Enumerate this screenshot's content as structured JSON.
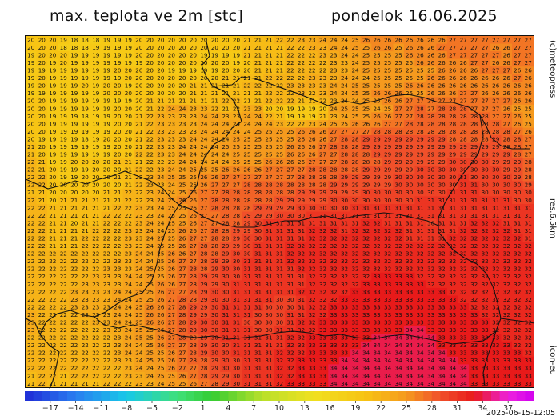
{
  "header": {
    "title": "max. teplota ve 2m [stc]",
    "date": "pondelok 16.06.2025"
  },
  "side_labels": {
    "copyright": "(c)meteopress",
    "resolution": "res.6.5km",
    "model": "icon-eu"
  },
  "footer": {
    "timestamp": "2025-06-15-12:05"
  },
  "colorbar": {
    "labels": [
      "-17",
      "-14",
      "-11",
      "-8",
      "-5",
      "-2",
      "1",
      "4",
      "7",
      "10",
      "13",
      "16",
      "19",
      "22",
      "25",
      "28",
      "31",
      "34",
      "37"
    ],
    "stops": [
      {
        "t": -20,
        "color": "#1f2bd6"
      },
      {
        "t": -14,
        "color": "#2a7ef0"
      },
      {
        "t": -8,
        "color": "#17c8e8"
      },
      {
        "t": -2,
        "color": "#3fe07a"
      },
      {
        "t": 2,
        "color": "#33cc33"
      },
      {
        "t": 8,
        "color": "#b8e02a"
      },
      {
        "t": 14,
        "color": "#f0e020"
      },
      {
        "t": 20,
        "color": "#f7c414"
      },
      {
        "t": 25,
        "color": "#f59a1e"
      },
      {
        "t": 29,
        "color": "#f0502a"
      },
      {
        "t": 33,
        "color": "#e81a1a"
      },
      {
        "t": 37,
        "color": "#ee22dd"
      },
      {
        "t": 40,
        "color": "#d000f0"
      }
    ]
  },
  "grid": {
    "cols": 47,
    "rows_data": [
      "20 20 20 19 18 18 18 19 19 19 20 20 20 20 20 20 20 20 20 20 21 21 21 22 22 23 23 24 24 24 25 26 26 26 26 26 26 26 26 27 27 27 27 27 27 27 27",
      "20 20 20 18 18 18 19 19 19 19 20 20 20 20 20 20 20 20 20 20 21 21 21 21 22 22 23 23 24 24 25 25 26 26 25 26 26 26 27 27 27 27 27 26 26 27 27",
      "19 20 20 20 19 19 19 19 19 19 20 20 20 20 20 20 19 19 19 19 21 21 21 21 22 22 22 23 23 24 24 25 25 25 25 26 26 26 26 27 27 27 27 27 26 27 27",
      "19 20 19 20 19 19 19 19 19 19 19 20 20 20 20 20 20 20 20 19 20 21 21 21 22 22 22 22 23 23 24 25 25 25 25 25 26 26 26 26 26 27 27 26 26 27 27",
      "19 19 19 19 19 19 19 19 20 20 20 20 20 19 19 19 19 19 20 20 20 21 21 21 22 22 22 22 23 23 24 25 25 25 25 25 25 25 26 26 26 26 27 27 27 26 26",
      "19 20 19 19 19 19 19 19 19 20 20 20 20 20 20 20 20 20 21 21 21 21 22 22 22 22 23 23 23 24 24 24 25 25 25 25 25 26 26 26 26 26 26 26 26 27 26",
      "19 20 19 19 19 20 19 20 20 19 20 20 20 20 20 21 21 21 21 21 22 22 22 22 23 23 23 23 24 24 25 25 25 25 25 26 26 26 26 26 26 26 26 26 26 26 26",
      "19 19 19 19 19 19 19 20 20 20 20 20 20 20 20 21 21 21 21 21 21 21 22 22 22 23 22 23 24 24 25 25 26 26 26 25 25 26 26 26 27 27 26 26 26 26 26",
      "20 20 19 19 19 19 19 19 19 19 20 21 21 21 21 21 21 21 22 22 21 21 22 22 22 21 21 22 23 24 24 25 25 26 26 27 27 27 27 27 27 27 27 27 27 26 26",
      "20 20 19 19 19 19 19 19 20 20 20 21 22 24 24 23 23 22 21 22 23 23 20 20 19 19 19 20 24 25 25 25 24 25 27 27 28 27 28 28 28 27 27 27 26 25 25",
      "20 20 19 19 19 18 19 19 20 20 21 22 23 23 23 23 24 24 23 23 24 24 22 21 19 19 19 21 23 24 25 25 26 26 27 27 28 28 28 28 28 28 28 27 27 26 25",
      "20 20 19 19 19 19 19 19 20 20 21 22 23 23 23 23 24 24 24 24 24 24 24 23 22 22 23 24 25 25 26 26 26 27 27 28 28 28 28 28 28 28 28 28 27 26 25",
      "20 20 19 19 19 19 19 19 20 20 21 22 23 23 23 23 24 24 24 24 24 25 25 25 25 26 26 26 27 27 27 27 28 28 28 28 28 28 28 28 28 28 28 28 28 27 26",
      "20 19 19 19 19 18 19 20 20 20 21 22 23 23 23 24 24 24 24 25 25 25 25 25 25 26 26 26 27 28 28 29 29 29 29 29 29 29 29 28 28 28 28 29 28 28 27",
      "21 20 19 19 19 19 19 19 20 20 21 22 23 23 24 24 24 24 25 25 25 25 25 25 26 26 26 27 28 28 28 29 29 29 29 29 29 29 29 29 29 29 29 29 28 28 27",
      "21 20 19 19 19 19 19 19 20 20 22 22 23 23 24 24 24 24 24 25 25 25 25 25 26 26 26 27 27 28 28 28 29 29 29 29 29 29 29 29 29 29 29 29 29 28 27",
      "22 21 19 19 20 20 20 20 21 21 21 22 22 23 24 24 24 24 24 25 25 25 26 26 26 26 27 27 27 28 28 28 28 29 29 29 29 29 29 30 30 30 30 29 29 29 28",
      "22 21 20 19 19 19 20 20 20 21 22 22 23 24 24 25 25 25 26 26 26 26 27 27 27 27 28 28 28 28 28 29 29 29 29 29 30 30 30 30 30 30 30 30 29 29 28",
      "22 22 20 19 19 20 20 20 21 21 22 23 24 25 25 25 26 26 27 27 27 27 27 27 27 28 28 28 28 29 29 29 29 29 30 30 30 30 30 30 31 30 30 30 30 29 28",
      "22 22 20 20 20 20 20 20 20 21 22 23 23 24 25 25 26 27 27 27 28 28 28 28 28 28 28 28 29 29 29 29 29 29 30 30 30 30 30 30 31 31 30 30 30 30 29",
      "21 21 20 20 20 20 20 21 21 22 22 23 24 24 25 26 27 27 28 28 28 28 28 28 28 29 29 29 29 29 29 30 30 30 30 30 30 30 30 31 31 31 30 30 30 30 30",
      "22 21 20 21 21 21 21 21 21 22 22 23 24 25 26 26 27 28 28 28 28 28 28 29 29 29 29 29 30 30 30 30 30 30 30 30 31 31 31 31 31 31 31 31 31 30 30",
      "22 22 21 21 21 21 21 21 22 22 23 23 24 25 25 26 27 28 28 28 28 29 29 29 29 30 30 30 30 30 31 31 31 31 31 31 31 31 31 31 31 31 31 31 31 31 31",
      "22 22 21 21 21 21 21 22 22 22 23 23 24 25 25 26 27 27 28 28 29 29 29 30 30 30 31 31 31 31 31 31 31 31 31 31 31 31 31 31 31 31 31 31 31 31 31",
      "22 22 21 21 20 21 21 22 22 22 23 24 24 25 25 26 27 27 28 28 29 30 31 31 31 31 31 31 31 31 31 32 32 31 31 31 31 30 31 31 31 32 32 32 31 31 31",
      "22 22 21 21 21 21 22 22 22 23 23 24 24 25 26 26 27 28 28 29 29 30 31 31 31 31 32 32 32 31 32 32 32 32 32 31 31 31 31 31 32 32 32 32 32 31 31",
      "22 22 21 21 21 22 22 22 22 23 23 24 25 25 26 27 27 28 28 29 30 30 31 31 31 31 32 32 32 32 32 32 32 32 32 31 31 31 31 32 32 32 32 32 32 32 31",
      "22 22 21 21 21 22 22 22 22 23 23 24 25 25 26 27 28 28 29 29 30 31 31 31 32 32 32 32 32 32 32 32 32 32 32 32 32 32 32 32 32 32 32 32 32 32 32",
      "22 22 22 22 22 22 22 22 22 23 24 24 25 26 26 27 28 28 29 30 30 31 31 31 32 32 32 32 32 32 32 32 32 32 32 32 32 32 32 32 32 32 32 32 32 32 32",
      "22 22 22 22 22 22 22 22 23 23 24 24 25 26 27 27 28 29 29 30 31 31 31 31 32 32 32 32 32 32 32 32 32 32 32 32 32 32 32 32 32 32 32 32 32 32 32",
      "22 22 22 22 22 22 22 23 23 23 24 25 25 26 27 28 28 29 30 30 31 31 31 31 31 32 32 32 32 32 32 32 32 32 32 32 32 32 32 32 32 32 32 32 32 32 32",
      "22 22 22 22 22 22 23 23 23 24 24 25 25 26 27 28 29 29 30 30 31 31 31 31 31 31 32 32 32 32 32 32 33 33 33 33 32 32 32 32 32 32 32 32 32 32 32",
      "22 22 22 22 22 23 23 23 23 24 24 25 26 26 27 28 29 29 30 31 31 31 31 31 31 31 32 32 32 32 32 33 33 33 33 33 33 32 32 32 32 32 32 32 32 32 32",
      "22 22 22 22 23 23 23 23 24 24 25 25 26 27 27 28 29 30 30 31 31 31 31 31 31 32 32 32 32 32 33 33 33 33 33 33 33 33 33 32 32 32 32 32 32 32 32",
      "22 22 22 22 23 23 23 23 24 24 25 25 26 27 28 28 29 30 30 31 31 31 31 30 30 31 32 32 32 33 33 33 33 33 33 33 33 33 33 33 32 32 32 32 32 32 32",
      "22 22 22 22 23 23 23 23 24 24 25 26 26 27 28 29 29 30 31 31 31 31 30 30 30 31 32 32 33 33 33 33 33 33 33 33 33 33 33 33 33 32 32 32 32 32 32",
      "23 22 22 22 22 23 23 23 24 24 25 26 26 27 28 29 29 30 31 31 31 30 30 30 31 31 32 32 33 33 33 33 33 33 33 33 33 33 33 33 33 33 32 32 32 32 32",
      "23 22 22 22 22 22 23 23 24 24 25 26 26 27 28 29 30 30 31 31 30 30 30 30 31 32 32 33 33 33 33 33 33 33 33 33 33 33 33 33 33 33 33 32 32 32 32",
      "23 22 22 22 22 22 22 23 23 24 25 25 26 27 28 29 30 30 31 31 31 30 30 31 31 32 32 33 33 33 33 33 33 33 33 34 34 33 33 33 33 33 33 32 32 32 32",
      "22 22 22 22 22 22 22 22 23 24 25 25 26 27 28 28 29 30 31 31 31 31 31 31 32 32 33 33 33 33 33 33 34 34 34 34 34 34 33 33 33 33 33 33 32 32 32",
      "22 22 22 22 22 22 22 22 23 24 24 25 26 27 27 28 29 30 30 31 31 31 31 31 32 32 33 33 33 33 33 34 34 34 34 34 34 34 33 33 33 33 33 33 33 32 32",
      "22 22 22 22 22 22 22 22 23 24 24 25 25 26 27 28 29 30 30 31 31 31 31 32 32 32 33 33 33 33 34 34 34 34 34 34 34 34 34 33 33 33 33 33 33 33 32",
      "22 22 22 22 22 22 22 22 23 23 24 25 25 26 27 28 28 29 30 30 31 31 31 32 32 33 33 33 33 34 34 34 34 34 34 34 34 34 34 34 33 33 33 33 33 33 33",
      "22 22 22 22 22 22 22 22 22 23 24 24 25 26 27 27 28 29 30 30 31 31 31 32 32 33 33 33 34 34 34 34 34 34 34 34 34 34 34 34 34 33 33 33 33 33 33",
      "21 22 22 21 22 22 22 22 22 23 23 24 25 25 26 27 28 29 29 30 31 31 31 32 32 33 33 33 34 34 34 34 34 34 34 34 34 34 34 34 34 33 33 33 33 33 33",
      "21 22 21 21 21 21 21 22 22 22 23 23 24 25 25 26 27 28 29 30 31 31 31 32 33 33 33 33 34 34 34 34 34 34 34 34 34 34 34 34 34 33 33 33 33 33 33"
    ]
  }
}
